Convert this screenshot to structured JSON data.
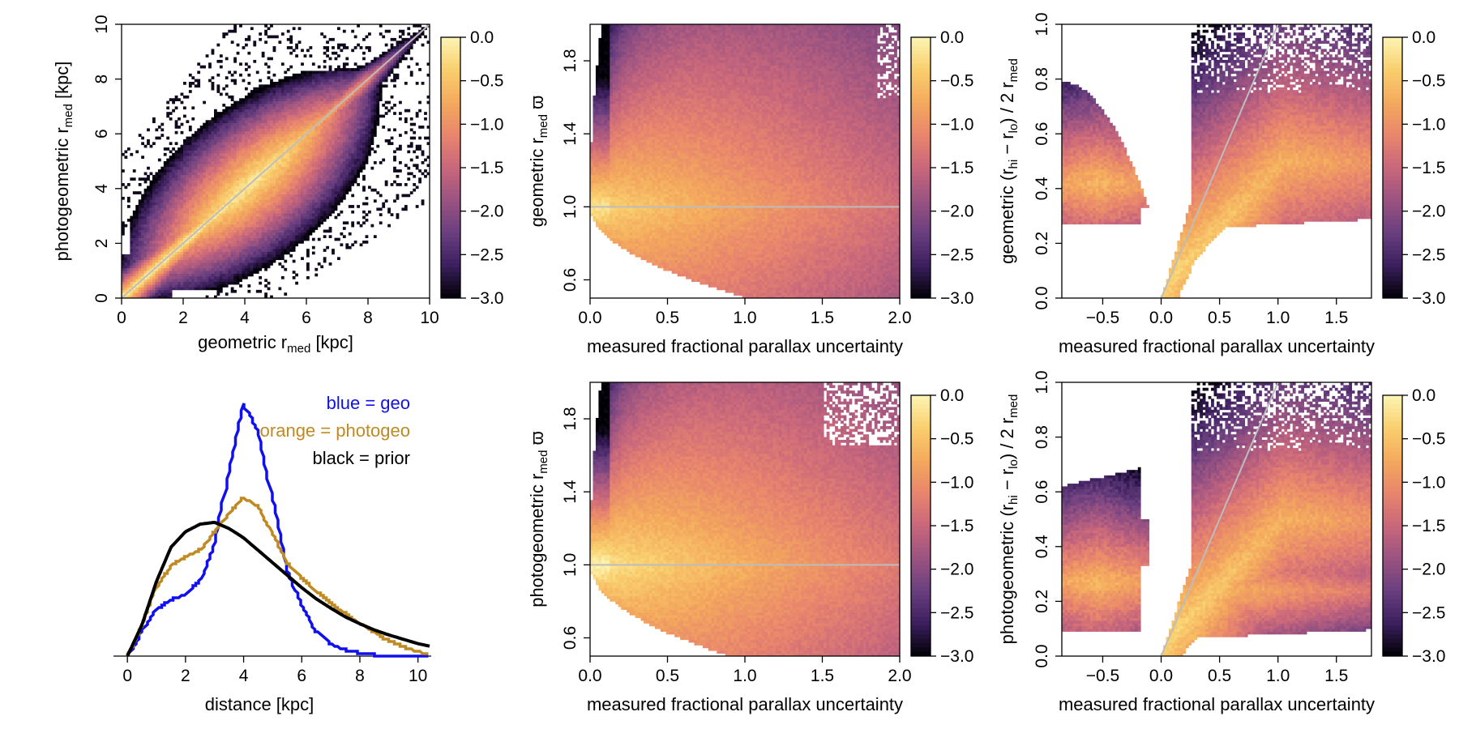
{
  "figure": {
    "colorbar_cmap": [
      "#000004",
      "#3b1f5e",
      "#6a3f7f",
      "#9b5381",
      "#c9677c",
      "#e8856d",
      "#f4a95d",
      "#f9cf6e",
      "#fcf5b4"
    ]
  },
  "chart_data": [
    {
      "id": "p1",
      "type": "heatmap",
      "xlabel_main": "geometric r",
      "xlabel_sub": "med",
      "xlabel_tail": " [kpc]",
      "ylabel_main": "photogeometric r",
      "ylabel_sub": "med",
      "ylabel_tail": " [kpc]",
      "xlim": [
        0,
        10
      ],
      "ylim": [
        0,
        10
      ],
      "xticks": [
        0,
        2,
        4,
        6,
        8,
        10
      ],
      "yticks": [
        0,
        2,
        4,
        6,
        8,
        10
      ],
      "xtick_labels": [
        "0",
        "2",
        "4",
        "6",
        "8",
        "10"
      ],
      "ytick_labels": [
        "0",
        "2",
        "4",
        "6",
        "8",
        "10"
      ],
      "reference_line": {
        "type": "diagonal",
        "from": [
          0,
          0
        ],
        "to": [
          10,
          10
        ]
      },
      "colorbar": {
        "range": [
          -3.0,
          0.0
        ],
        "ticks": [
          0.0,
          -0.5,
          -1.0,
          -1.5,
          -2.0,
          -2.5,
          -3.0
        ],
        "tick_labels": [
          "0.0",
          "−0.5",
          "−1.0",
          "−1.5",
          "−2.0",
          "−2.5",
          "−3.0"
        ]
      }
    },
    {
      "id": "p2",
      "type": "heatmap",
      "xlabel": "measured fractional parallax uncertainty",
      "ylabel_main": "geometric r",
      "ylabel_sub": "med",
      "ylabel_tail": " ϖ",
      "xlim": [
        0,
        2
      ],
      "ylim": [
        0.5,
        2
      ],
      "xticks": [
        0,
        0.5,
        1.0,
        1.5,
        2.0
      ],
      "xtick_labels": [
        "0.0",
        "0.5",
        "1.0",
        "1.5",
        "2.0"
      ],
      "yticks": [
        0.6,
        1.0,
        1.4,
        1.8
      ],
      "ytick_labels": [
        "0.6",
        "1.0",
        "1.4",
        "1.8"
      ],
      "reference_line": {
        "type": "horizontal",
        "y": 1.0
      },
      "colorbar": {
        "range": [
          -3.0,
          0.0
        ],
        "ticks": [
          0.0,
          -0.5,
          -1.0,
          -1.5,
          -2.0,
          -2.5,
          -3.0
        ],
        "tick_labels": [
          "0.0",
          "−0.5",
          "−1.0",
          "−1.5",
          "−2.0",
          "−2.5",
          "−3.0"
        ]
      }
    },
    {
      "id": "p3",
      "type": "heatmap",
      "xlabel": "measured fractional parallax uncertainty",
      "ylabel_pre": "geometric  (r",
      "ylabel_sub1": "hi",
      "ylabel_mid": " − r",
      "ylabel_sub2": "lo",
      "ylabel_post": ") / 2 r",
      "ylabel_sub3": "med",
      "xlim": [
        -0.85,
        1.8
      ],
      "ylim": [
        0,
        1
      ],
      "xticks": [
        -0.5,
        0.0,
        0.5,
        1.0,
        1.5
      ],
      "xtick_labels": [
        "−0.5",
        "0.0",
        "0.5",
        "1.0",
        "1.5"
      ],
      "yticks": [
        0,
        0.2,
        0.4,
        0.6,
        0.8,
        1.0
      ],
      "ytick_labels": [
        "0.0",
        "0.2",
        "0.4",
        "0.6",
        "0.8",
        "1.0"
      ],
      "reference_line": {
        "type": "diagonal",
        "from": [
          0,
          0
        ],
        "to": [
          1,
          1
        ]
      },
      "colorbar": {
        "range": [
          -3.0,
          0.0
        ],
        "ticks": [
          0.0,
          -0.5,
          -1.0,
          -1.5,
          -2.0,
          -2.5,
          -3.0
        ],
        "tick_labels": [
          "0.0",
          "−0.5",
          "−1.0",
          "−1.5",
          "−2.0",
          "−2.5",
          "−3.0"
        ]
      }
    },
    {
      "id": "p4",
      "type": "line",
      "xlabel": "distance [kpc]",
      "xlim": [
        -0.2,
        10.4
      ],
      "ylim": [
        0,
        0.44
      ],
      "xticks": [
        0,
        2,
        4,
        6,
        8,
        10
      ],
      "xtick_labels": [
        "0",
        "2",
        "4",
        "6",
        "8",
        "10"
      ],
      "legend": [
        {
          "text": "blue = geo",
          "color": "#1010ee"
        },
        {
          "text": "orange = photogeo",
          "color": "#c08a22"
        },
        {
          "text": "black = prior",
          "color": "#000000"
        }
      ],
      "x": [
        0,
        0.5,
        1,
        1.5,
        2,
        2.5,
        3,
        3.5,
        4,
        4.5,
        5,
        5.5,
        6,
        6.5,
        7,
        7.5,
        8,
        8.5,
        9,
        9.5,
        10,
        10.4
      ],
      "series": [
        {
          "name": "geo",
          "color": "#1010ee",
          "values": [
            0,
            0.04,
            0.075,
            0.09,
            0.1,
            0.12,
            0.18,
            0.3,
            0.405,
            0.36,
            0.25,
            0.14,
            0.08,
            0.04,
            0.02,
            0.01,
            0.005,
            0.002,
            0.001,
            0,
            0,
            0
          ]
        },
        {
          "name": "photogeo",
          "color": "#c08a22",
          "values": [
            0,
            0.05,
            0.11,
            0.145,
            0.16,
            0.17,
            0.2,
            0.23,
            0.255,
            0.24,
            0.195,
            0.15,
            0.125,
            0.105,
            0.085,
            0.068,
            0.052,
            0.038,
            0.025,
            0.015,
            0.007,
            0.003
          ]
        },
        {
          "name": "prior",
          "color": "#000000",
          "values": [
            0,
            0.05,
            0.12,
            0.175,
            0.2,
            0.212,
            0.215,
            0.205,
            0.19,
            0.17,
            0.15,
            0.13,
            0.11,
            0.092,
            0.077,
            0.063,
            0.052,
            0.042,
            0.034,
            0.027,
            0.02,
            0.016
          ]
        }
      ]
    },
    {
      "id": "p5",
      "type": "heatmap",
      "xlabel": "measured fractional parallax uncertainty",
      "ylabel_main": "photogeometric r",
      "ylabel_sub": "med",
      "ylabel_tail": " ϖ",
      "xlim": [
        0,
        2
      ],
      "ylim": [
        0.5,
        2
      ],
      "xticks": [
        0,
        0.5,
        1.0,
        1.5,
        2.0
      ],
      "xtick_labels": [
        "0.0",
        "0.5",
        "1.0",
        "1.5",
        "2.0"
      ],
      "yticks": [
        0.6,
        1.0,
        1.4,
        1.8
      ],
      "ytick_labels": [
        "0.6",
        "1.0",
        "1.4",
        "1.8"
      ],
      "reference_line": {
        "type": "horizontal",
        "y": 1.0
      },
      "colorbar": {
        "range": [
          -3.0,
          0.0
        ],
        "ticks": [
          0.0,
          -0.5,
          -1.0,
          -1.5,
          -2.0,
          -2.5,
          -3.0
        ],
        "tick_labels": [
          "0.0",
          "−0.5",
          "−1.0",
          "−1.5",
          "−2.0",
          "−2.5",
          "−3.0"
        ]
      }
    },
    {
      "id": "p6",
      "type": "heatmap",
      "xlabel": "measured fractional parallax uncertainty",
      "ylabel_pre": "photogeometric  (r",
      "ylabel_sub1": "hi",
      "ylabel_mid": " − r",
      "ylabel_sub2": "lo",
      "ylabel_post": ") / 2 r",
      "ylabel_sub3": "med",
      "xlim": [
        -0.85,
        1.8
      ],
      "ylim": [
        0,
        1
      ],
      "xticks": [
        -0.5,
        0.0,
        0.5,
        1.0,
        1.5
      ],
      "xtick_labels": [
        "−0.5",
        "0.0",
        "0.5",
        "1.0",
        "1.5"
      ],
      "yticks": [
        0,
        0.2,
        0.4,
        0.6,
        0.8,
        1.0
      ],
      "ytick_labels": [
        "0.0",
        "0.2",
        "0.4",
        "0.6",
        "0.8",
        "1.0"
      ],
      "reference_line": {
        "type": "diagonal",
        "from": [
          0,
          0
        ],
        "to": [
          1,
          1
        ]
      },
      "colorbar": {
        "range": [
          -3.0,
          0.0
        ],
        "ticks": [
          0.0,
          -0.5,
          -1.0,
          -1.5,
          -2.0,
          -2.5,
          -3.0
        ],
        "tick_labels": [
          "0.0",
          "−0.5",
          "−1.0",
          "−1.5",
          "−2.0",
          "−2.5",
          "−3.0"
        ]
      }
    }
  ]
}
